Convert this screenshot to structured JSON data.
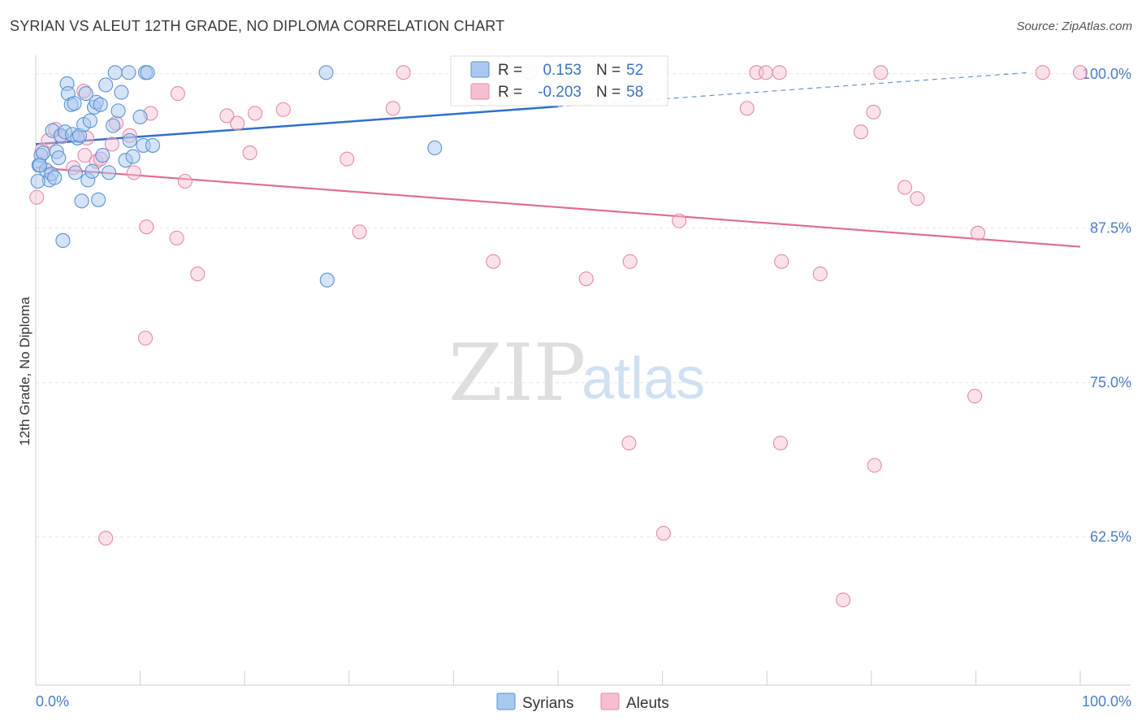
{
  "header": {
    "title": "SYRIAN VS ALEUT 12TH GRADE, NO DIPLOMA CORRELATION CHART",
    "source": "Source: ZipAtlas.com"
  },
  "watermark": {
    "zip": "ZIP",
    "atlas": "atlas"
  },
  "legend_box": {
    "syrians": {
      "r_label": "R =",
      "r_value": "0.153",
      "n_label": "N =",
      "n_value": "52"
    },
    "aleuts": {
      "r_label": "R =",
      "r_value": "-0.203",
      "n_label": "N =",
      "n_value": "58"
    }
  },
  "bottom_legend": {
    "syrians": "Syrians",
    "aleuts": "Aleuts"
  },
  "colors": {
    "syrians_fill": "#a9c8ef",
    "syrians_stroke": "#5b93d6",
    "syrians_line": "#2f6fcb",
    "aleuts_fill": "#f6bfd1",
    "aleuts_stroke": "#e58aaa",
    "aleuts_line": "#e26b96",
    "axis_text": "#4a7cc7",
    "grid": "#e5e5e5"
  },
  "chart_data": {
    "type": "scatter",
    "title": "SYRIAN VS ALEUT 12TH GRADE, NO DIPLOMA CORRELATION CHART",
    "xlabel": "",
    "ylabel": "12th Grade, No Diploma",
    "xlim": [
      0,
      100
    ],
    "ylim": [
      50.5,
      101.5
    ],
    "x_tick_labels": [
      "0.0%",
      "100.0%"
    ],
    "y_ticks": [
      62.5,
      75.0,
      87.5,
      100.0
    ],
    "y_tick_labels": [
      "62.5%",
      "75.0%",
      "87.5%",
      "100.0%"
    ],
    "grid": true,
    "series": [
      {
        "name": "Syrians",
        "R": 0.153,
        "N": 52,
        "trend": {
          "x": [
            0,
            100
          ],
          "y": [
            94.3,
            100.4
          ],
          "solid_until_x": 50
        },
        "points": [
          [
            0.3,
            92.6
          ],
          [
            0.5,
            93.4
          ],
          [
            0.7,
            93.6
          ],
          [
            1.0,
            92.2
          ],
          [
            1.3,
            91.4
          ],
          [
            1.5,
            91.9
          ],
          [
            1.6,
            95.4
          ],
          [
            1.8,
            91.6
          ],
          [
            2.0,
            93.7
          ],
          [
            2.2,
            93.2
          ],
          [
            2.4,
            95.0
          ],
          [
            2.6,
            86.5
          ],
          [
            2.8,
            95.3
          ],
          [
            3.0,
            99.2
          ],
          [
            3.1,
            98.4
          ],
          [
            3.4,
            97.5
          ],
          [
            3.5,
            95.1
          ],
          [
            3.7,
            97.6
          ],
          [
            3.8,
            92.0
          ],
          [
            4.0,
            94.8
          ],
          [
            4.2,
            95.0
          ],
          [
            4.4,
            89.7
          ],
          [
            4.6,
            95.9
          ],
          [
            4.8,
            98.4
          ],
          [
            5.0,
            91.4
          ],
          [
            5.2,
            96.2
          ],
          [
            5.4,
            92.1
          ],
          [
            5.6,
            97.3
          ],
          [
            5.8,
            97.7
          ],
          [
            6.0,
            89.8
          ],
          [
            6.2,
            97.5
          ],
          [
            6.4,
            93.4
          ],
          [
            6.7,
            99.1
          ],
          [
            7.0,
            92.0
          ],
          [
            7.4,
            95.8
          ],
          [
            7.6,
            100.1
          ],
          [
            7.9,
            97.0
          ],
          [
            8.2,
            98.5
          ],
          [
            8.6,
            93.0
          ],
          [
            8.9,
            100.1
          ],
          [
            9.0,
            94.6
          ],
          [
            9.3,
            93.3
          ],
          [
            10.0,
            96.5
          ],
          [
            10.3,
            94.2
          ],
          [
            10.5,
            100.1
          ],
          [
            10.7,
            100.1
          ],
          [
            11.2,
            94.2
          ],
          [
            27.8,
            100.1
          ],
          [
            27.9,
            83.3
          ],
          [
            38.2,
            94.0
          ],
          [
            0.2,
            91.3
          ],
          [
            0.4,
            92.6
          ]
        ]
      },
      {
        "name": "Aleuts",
        "R": -0.203,
        "N": 58,
        "trend": {
          "x": [
            0,
            100
          ],
          "y": [
            92.4,
            86.0
          ]
        },
        "points": [
          [
            0.1,
            90.0
          ],
          [
            0.6,
            93.8
          ],
          [
            1.2,
            94.6
          ],
          [
            1.9,
            95.5
          ],
          [
            2.5,
            94.9
          ],
          [
            3.6,
            92.4
          ],
          [
            4.6,
            98.6
          ],
          [
            4.7,
            93.4
          ],
          [
            5.8,
            92.9
          ],
          [
            6.2,
            93.1
          ],
          [
            6.7,
            62.4
          ],
          [
            7.3,
            94.3
          ],
          [
            7.7,
            96.0
          ],
          [
            9.0,
            95.0
          ],
          [
            9.4,
            92.0
          ],
          [
            10.5,
            78.6
          ],
          [
            10.6,
            87.6
          ],
          [
            11.0,
            96.8
          ],
          [
            13.5,
            86.7
          ],
          [
            13.6,
            98.4
          ],
          [
            14.3,
            91.3
          ],
          [
            15.5,
            83.8
          ],
          [
            18.3,
            96.6
          ],
          [
            19.3,
            96.0
          ],
          [
            20.5,
            93.6
          ],
          [
            21.0,
            96.8
          ],
          [
            23.7,
            97.1
          ],
          [
            29.8,
            93.1
          ],
          [
            31.0,
            87.2
          ],
          [
            34.2,
            97.2
          ],
          [
            35.2,
            100.1
          ],
          [
            43.8,
            84.8
          ],
          [
            47.3,
            100.1
          ],
          [
            52.7,
            83.4
          ],
          [
            55.8,
            100.1
          ],
          [
            56.8,
            70.1
          ],
          [
            56.9,
            84.8
          ],
          [
            60.1,
            62.8
          ],
          [
            61.6,
            88.1
          ],
          [
            68.1,
            97.2
          ],
          [
            69.0,
            100.1
          ],
          [
            69.9,
            100.1
          ],
          [
            71.2,
            100.1
          ],
          [
            71.3,
            70.1
          ],
          [
            71.4,
            84.8
          ],
          [
            75.1,
            83.8
          ],
          [
            77.3,
            57.4
          ],
          [
            79.0,
            95.3
          ],
          [
            80.2,
            96.9
          ],
          [
            80.3,
            68.3
          ],
          [
            80.9,
            100.1
          ],
          [
            83.2,
            90.8
          ],
          [
            84.4,
            89.9
          ],
          [
            89.9,
            73.9
          ],
          [
            90.2,
            87.1
          ],
          [
            96.4,
            100.1
          ],
          [
            100.0,
            100.1
          ],
          [
            4.9,
            94.8
          ]
        ]
      }
    ]
  }
}
